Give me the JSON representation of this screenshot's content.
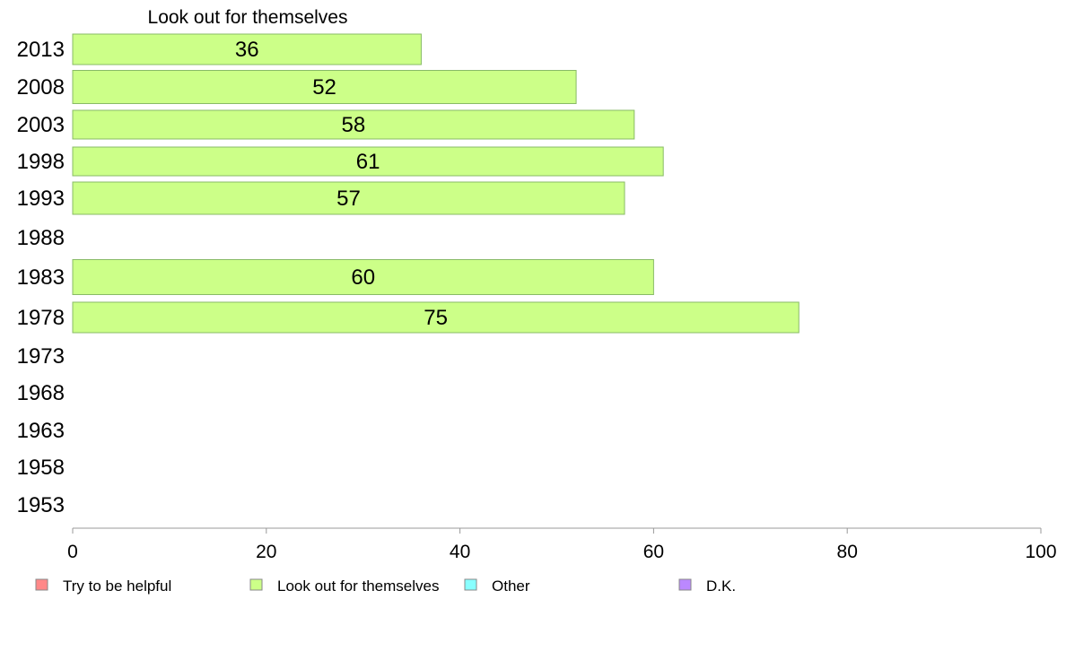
{
  "chart_data": {
    "type": "bar",
    "orientation": "horizontal",
    "title": "Look out for themselves",
    "categories": [
      "2013",
      "2008",
      "2003",
      "1998",
      "1993",
      "1988",
      "1983",
      "1978",
      "1973",
      "1968",
      "1963",
      "1958",
      "1953"
    ],
    "series": [
      {
        "name": "Look out for themselves",
        "color": "#ccff88",
        "values": [
          36,
          52,
          58,
          61,
          57,
          null,
          60,
          75,
          null,
          null,
          null,
          null,
          null
        ]
      }
    ],
    "xlim": [
      0,
      100
    ],
    "xticks": [
      0,
      20,
      40,
      60,
      80,
      100
    ],
    "grid": false,
    "legend_position": "bottom",
    "legend": [
      {
        "name": "Try to be helpful",
        "color": "#ff8888"
      },
      {
        "name": "Look out for themselves",
        "color": "#ccff88"
      },
      {
        "name": "Other",
        "color": "#88ffff"
      },
      {
        "name": "D.K.",
        "color": "#bb88ff"
      }
    ]
  }
}
